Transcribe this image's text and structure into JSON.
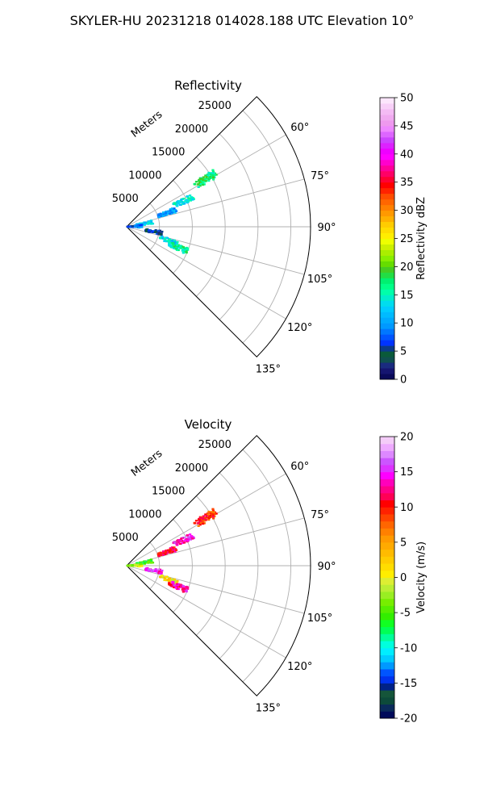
{
  "title": "SKYLER-HU  20231218  014028.188 UTC Elevation 10°",
  "chart_data": [
    {
      "type": "polar",
      "title": "Reflectivity",
      "radial_axis_label": "Meters",
      "radial_ticks": [
        5000,
        10000,
        15000,
        20000,
        25000
      ],
      "radial_max": 28000,
      "theta_ticks": [
        "60°",
        "75°",
        "90°",
        "105°",
        "120°",
        "135°"
      ],
      "theta_range_deg": [
        45,
        135
      ],
      "colorbar": {
        "label": "Reflectivity dBZ",
        "ticks": [
          0,
          5,
          10,
          15,
          20,
          25,
          30,
          35,
          40,
          45,
          50
        ],
        "range": [
          0,
          50
        ]
      },
      "clusters": [
        {
          "az": 59,
          "r": 14000,
          "value": 17
        },
        {
          "az": 66,
          "r": 9500,
          "value": 14
        },
        {
          "az": 71,
          "r": 6500,
          "value": 10
        },
        {
          "az": 80,
          "r": 2800,
          "value": 12
        },
        {
          "az": 88,
          "r": 1300,
          "value": 8
        },
        {
          "az": 100,
          "r": 4200,
          "value": 5
        },
        {
          "az": 108,
          "r": 6800,
          "value": 13
        },
        {
          "az": 112,
          "r": 8500,
          "value": 16
        }
      ]
    },
    {
      "type": "polar",
      "title": "Velocity",
      "radial_axis_label": "Meters",
      "radial_ticks": [
        5000,
        10000,
        15000,
        20000,
        25000
      ],
      "radial_max": 28000,
      "theta_ticks": [
        "60°",
        "75°",
        "90°",
        "105°",
        "120°",
        "135°"
      ],
      "theta_range_deg": [
        45,
        135
      ],
      "colorbar": {
        "label": "Velocity (m/s)",
        "ticks": [
          -20,
          -15,
          -10,
          -5,
          0,
          5,
          10,
          15,
          20
        ],
        "range": [
          -20,
          20
        ]
      },
      "clusters": [
        {
          "az": 59,
          "r": 14000,
          "value": 9
        },
        {
          "az": 66,
          "r": 9500,
          "value": 14
        },
        {
          "az": 71,
          "r": 6500,
          "value": 11
        },
        {
          "az": 80,
          "r": 2800,
          "value": -6
        },
        {
          "az": 88,
          "r": 1300,
          "value": -2
        },
        {
          "az": 100,
          "r": 4200,
          "value": 15
        },
        {
          "az": 108,
          "r": 6800,
          "value": 1
        },
        {
          "az": 112,
          "r": 8500,
          "value": 13
        }
      ]
    }
  ]
}
